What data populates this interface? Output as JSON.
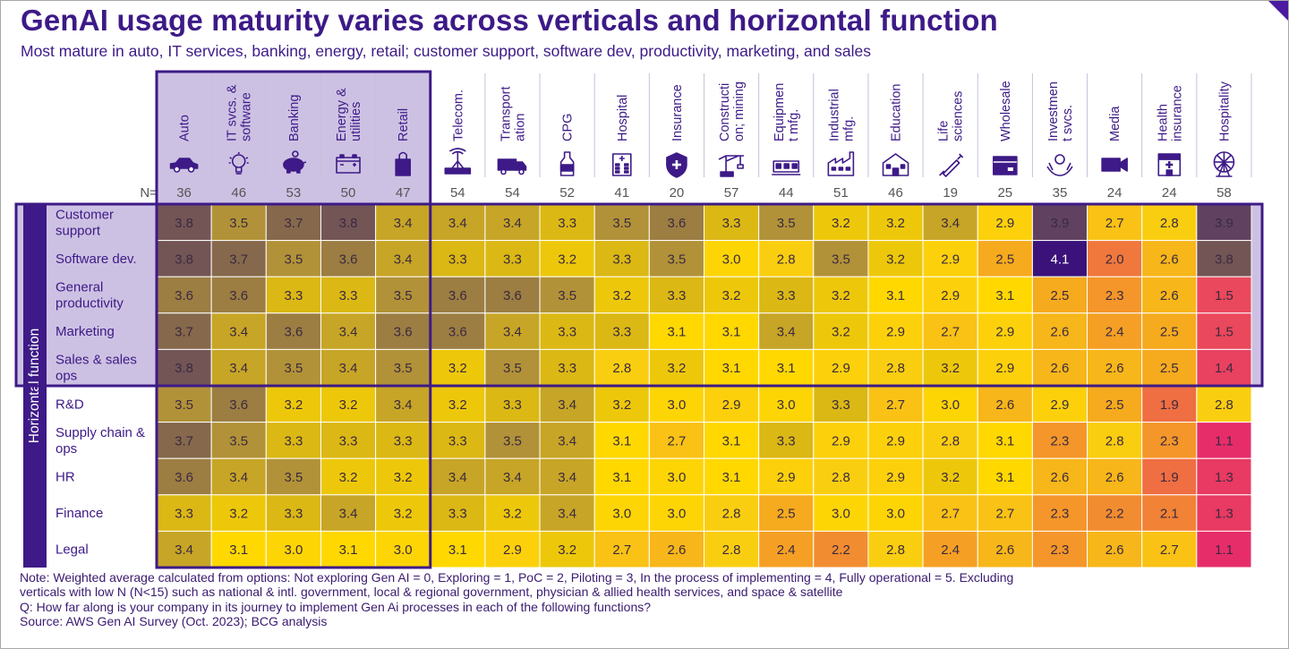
{
  "title": "GenAI usage maturity varies across verticals and horizontal function",
  "subtitle": "Most mature in auto, IT services, banking, energy, retail; customer support, software dev, productivity, marketing, and sales",
  "notes": [
    "Note: Weighted average calculated from options: Not exploring Gen AI = 0, Exploring = 1, PoC = 2, Piloting = 3, In the process of implementing = 4, Fully operational = 5. Excluding verticals with low N (N<15) such as national & intl. government, local & regional government, physician & allied health services, and space & satellite",
    "Q: How far along is your company in its journey to implement Gen Ai processes in each of the following functions?",
    "Source: AWS Gen AI Survey (Oct. 2023); BCG analysis"
  ],
  "colors": {
    "accent": "#3d1a87",
    "highlight_fill": "#cdc1e3",
    "row_axis_bar": "#3d1a87"
  },
  "chart_data": {
    "type": "heatmap",
    "title": "GenAI usage maturity varies across verticals and horizontal function",
    "n_label": "N=",
    "row_axis_label": "Horizontal function",
    "value_range": [
      1.0,
      4.1
    ],
    "highlighted_columns": [
      "Auto",
      "IT svcs. & software",
      "Banking",
      "Energy & utilities",
      "Retail"
    ],
    "highlighted_rows": [
      "Customer support",
      "Software dev.",
      "General productivity",
      "Marketing",
      "Sales & sales ops"
    ],
    "columns": [
      {
        "label": [
          "Auto"
        ],
        "n": 36,
        "icon": "car-icon"
      },
      {
        "label": [
          "IT svcs. &",
          "software"
        ],
        "n": 46,
        "icon": "lightbulb-icon"
      },
      {
        "label": [
          "Banking"
        ],
        "n": 53,
        "icon": "piggy-bank-icon"
      },
      {
        "label": [
          "Energy &",
          "utilities"
        ],
        "n": 50,
        "icon": "battery-icon"
      },
      {
        "label": [
          "Retail"
        ],
        "n": 47,
        "icon": "shopping-bag-icon"
      },
      {
        "label": [
          "Telecom."
        ],
        "n": 54,
        "icon": "antenna-icon"
      },
      {
        "label": [
          "Transport",
          "ation"
        ],
        "n": 54,
        "icon": "truck-icon"
      },
      {
        "label": [
          "CPG"
        ],
        "n": 52,
        "icon": "bottle-icon"
      },
      {
        "label": [
          "Hospital"
        ],
        "n": 41,
        "icon": "hospital-icon"
      },
      {
        "label": [
          "Insurance"
        ],
        "n": 20,
        "icon": "shield-icon"
      },
      {
        "label": [
          "Constructi",
          "on; mining"
        ],
        "n": 57,
        "icon": "crane-icon"
      },
      {
        "label": [
          "Equipmen",
          "t mfg."
        ],
        "n": 44,
        "icon": "equipment-icon"
      },
      {
        "label": [
          "Industrial",
          "mfg."
        ],
        "n": 51,
        "icon": "factory-icon"
      },
      {
        "label": [
          "Education"
        ],
        "n": 46,
        "icon": "school-icon"
      },
      {
        "label": [
          "Life",
          "sciences"
        ],
        "n": 19,
        "icon": "syringe-icon"
      },
      {
        "label": [
          "Wholesale"
        ],
        "n": 25,
        "icon": "box-icon"
      },
      {
        "label": [
          "Investmen",
          "t svcs."
        ],
        "n": 35,
        "icon": "hands-coin-icon"
      },
      {
        "label": [
          "Media"
        ],
        "n": 24,
        "icon": "camera-icon"
      },
      {
        "label": [
          "Health",
          "insurance"
        ],
        "n": 24,
        "icon": "health-store-icon"
      },
      {
        "label": [
          "Hospitality"
        ],
        "n": 58,
        "icon": "ferris-wheel-icon"
      }
    ],
    "rows": [
      {
        "label": [
          "Customer",
          "support"
        ],
        "values": [
          3.8,
          3.5,
          3.7,
          3.8,
          3.4,
          3.4,
          3.4,
          3.3,
          3.5,
          3.6,
          3.3,
          3.5,
          3.2,
          3.2,
          3.4,
          2.9,
          3.9,
          2.7,
          2.8,
          3.9
        ]
      },
      {
        "label": [
          "Software dev."
        ],
        "values": [
          3.8,
          3.7,
          3.5,
          3.6,
          3.4,
          3.3,
          3.3,
          3.2,
          3.3,
          3.5,
          3.0,
          2.8,
          3.5,
          3.2,
          2.9,
          2.5,
          4.1,
          2.0,
          2.6,
          3.8
        ]
      },
      {
        "label": [
          "General",
          "productivity"
        ],
        "values": [
          3.6,
          3.6,
          3.3,
          3.3,
          3.5,
          3.6,
          3.6,
          3.5,
          3.2,
          3.3,
          3.2,
          3.3,
          3.2,
          3.1,
          2.9,
          3.1,
          2.5,
          2.3,
          2.6,
          1.5
        ]
      },
      {
        "label": [
          "Marketing"
        ],
        "values": [
          3.7,
          3.4,
          3.6,
          3.4,
          3.6,
          3.6,
          3.4,
          3.3,
          3.3,
          3.1,
          3.1,
          3.4,
          3.2,
          2.9,
          2.7,
          2.9,
          2.6,
          2.4,
          2.5,
          1.5
        ]
      },
      {
        "label": [
          "Sales & sales",
          "ops"
        ],
        "values": [
          3.8,
          3.4,
          3.5,
          3.4,
          3.5,
          3.2,
          3.5,
          3.3,
          2.8,
          3.2,
          3.1,
          3.1,
          2.9,
          2.8,
          3.2,
          2.9,
          2.6,
          2.6,
          2.5,
          1.4
        ]
      },
      {
        "label": [
          "R&D"
        ],
        "values": [
          3.5,
          3.6,
          3.2,
          3.2,
          3.4,
          3.2,
          3.3,
          3.4,
          3.2,
          3.0,
          2.9,
          3.0,
          3.3,
          2.7,
          3.0,
          2.6,
          2.9,
          2.5,
          1.9,
          2.8
        ]
      },
      {
        "label": [
          "Supply chain &",
          "ops"
        ],
        "values": [
          3.7,
          3.5,
          3.3,
          3.3,
          3.3,
          3.3,
          3.5,
          3.4,
          3.1,
          2.7,
          3.1,
          3.3,
          2.9,
          2.9,
          2.8,
          3.1,
          2.3,
          2.8,
          2.3,
          1.1
        ]
      },
      {
        "label": [
          "HR"
        ],
        "values": [
          3.6,
          3.4,
          3.5,
          3.2,
          3.2,
          3.4,
          3.4,
          3.4,
          3.1,
          3.0,
          3.1,
          2.9,
          2.8,
          2.9,
          3.2,
          3.1,
          2.6,
          2.6,
          1.9,
          1.3
        ]
      },
      {
        "label": [
          "Finance"
        ],
        "values": [
          3.3,
          3.2,
          3.3,
          3.4,
          3.2,
          3.3,
          3.2,
          3.4,
          3.0,
          3.0,
          2.8,
          2.5,
          3.0,
          3.0,
          2.7,
          2.7,
          2.3,
          2.2,
          2.1,
          1.3
        ]
      },
      {
        "label": [
          "Legal"
        ],
        "values": [
          3.4,
          3.1,
          3.0,
          3.1,
          3.0,
          3.1,
          2.9,
          3.2,
          2.7,
          2.6,
          2.8,
          2.4,
          2.2,
          2.8,
          2.4,
          2.6,
          2.3,
          2.6,
          2.7,
          1.1
        ]
      }
    ]
  }
}
